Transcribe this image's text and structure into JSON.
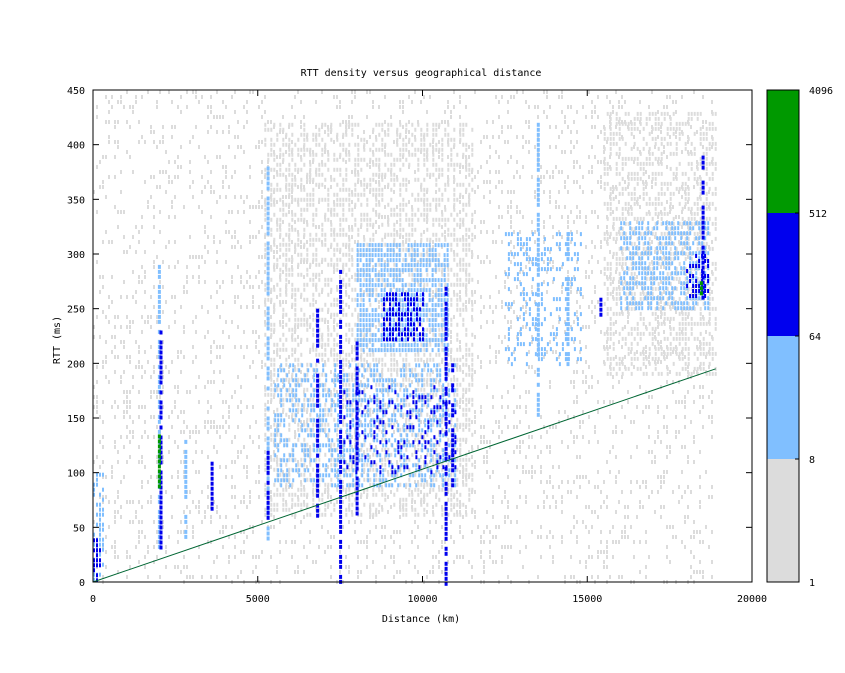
{
  "chart_data": {
    "type": "heatmap",
    "title": "RTT density versus geographical distance",
    "xlabel": "Distance (km)",
    "ylabel": "RTT (ms)",
    "xlim": [
      0,
      20000
    ],
    "ylim": [
      0,
      450
    ],
    "x_ticks": [
      0,
      5000,
      10000,
      15000,
      20000
    ],
    "y_ticks": [
      0,
      50,
      100,
      150,
      200,
      250,
      300,
      350,
      400,
      450
    ],
    "colorbar": {
      "scale": "log",
      "range": [
        1,
        4096
      ],
      "ticks": [
        1,
        8,
        64,
        512,
        4096
      ],
      "bands": [
        {
          "from": 1,
          "to": 8,
          "color": "#dcdcdc"
        },
        {
          "from": 8,
          "to": 64,
          "color": "#80bfff"
        },
        {
          "from": 64,
          "to": 512,
          "color": "#0000ee"
        },
        {
          "from": 512,
          "to": 4096,
          "color": "#009900"
        }
      ]
    },
    "reference_line": {
      "color": "#006633",
      "points": [
        [
          0,
          0
        ],
        [
          18900,
          195
        ]
      ]
    },
    "density_regions": [
      {
        "level": 1,
        "x": [
          0,
          18800
        ],
        "y": [
          0,
          450
        ],
        "fill": 0.15
      },
      {
        "level": 1,
        "x": [
          5200,
          11500
        ],
        "y": [
          60,
          420
        ],
        "fill": 0.45
      },
      {
        "level": 1,
        "x": [
          15500,
          18900
        ],
        "y": [
          190,
          430
        ],
        "fill": 0.45
      },
      {
        "level": 2,
        "x": [
          8000,
          10800
        ],
        "y": [
          210,
          310
        ],
        "fill": 0.75
      },
      {
        "level": 2,
        "x": [
          5500,
          11000
        ],
        "y": [
          90,
          200
        ],
        "fill": 0.45
      },
      {
        "level": 2,
        "x": [
          16000,
          18700
        ],
        "y": [
          250,
          330
        ],
        "fill": 0.6
      },
      {
        "level": 2,
        "x": [
          12500,
          14800
        ],
        "y": [
          200,
          320
        ],
        "fill": 0.3
      },
      {
        "level": 2,
        "x": [
          0,
          300
        ],
        "y": [
          0,
          100
        ],
        "fill": 0.5
      },
      {
        "level": 3,
        "x": [
          8800,
          10000
        ],
        "y": [
          220,
          265
        ],
        "fill": 0.65
      },
      {
        "level": 3,
        "x": [
          7600,
          11000
        ],
        "y": [
          100,
          180
        ],
        "fill": 0.2
      },
      {
        "level": 3,
        "x": [
          18000,
          18700
        ],
        "y": [
          260,
          300
        ],
        "fill": 0.5
      },
      {
        "level": 3,
        "x": [
          0,
          200
        ],
        "y": [
          0,
          40
        ],
        "fill": 0.7
      }
    ],
    "vertical_streaks": [
      {
        "x": 2000,
        "y": [
          30,
          290
        ],
        "level": 2
      },
      {
        "x": 2050,
        "y": [
          30,
          230
        ],
        "level": 3
      },
      {
        "x": 2000,
        "y": [
          85,
          135
        ],
        "level": 4
      },
      {
        "x": 2800,
        "y": [
          40,
          130
        ],
        "level": 2
      },
      {
        "x": 3600,
        "y": [
          60,
          110
        ],
        "level": 3
      },
      {
        "x": 5300,
        "y": [
          40,
          380
        ],
        "level": 2
      },
      {
        "x": 5300,
        "y": [
          60,
          120
        ],
        "level": 3
      },
      {
        "x": 6800,
        "y": [
          60,
          250
        ],
        "level": 3
      },
      {
        "x": 7500,
        "y": [
          0,
          290
        ],
        "level": 3
      },
      {
        "x": 8000,
        "y": [
          60,
          220
        ],
        "level": 3
      },
      {
        "x": 10700,
        "y": [
          0,
          270
        ],
        "level": 3
      },
      {
        "x": 10900,
        "y": [
          90,
          200
        ],
        "level": 3
      },
      {
        "x": 13500,
        "y": [
          150,
          420
        ],
        "level": 2
      },
      {
        "x": 14400,
        "y": [
          200,
          320
        ],
        "level": 2
      },
      {
        "x": 15400,
        "y": [
          230,
          260
        ],
        "level": 3
      },
      {
        "x": 18500,
        "y": [
          260,
          390
        ],
        "level": 3
      },
      {
        "x": 18450,
        "y": [
          265,
          275
        ],
        "level": 4
      }
    ]
  }
}
